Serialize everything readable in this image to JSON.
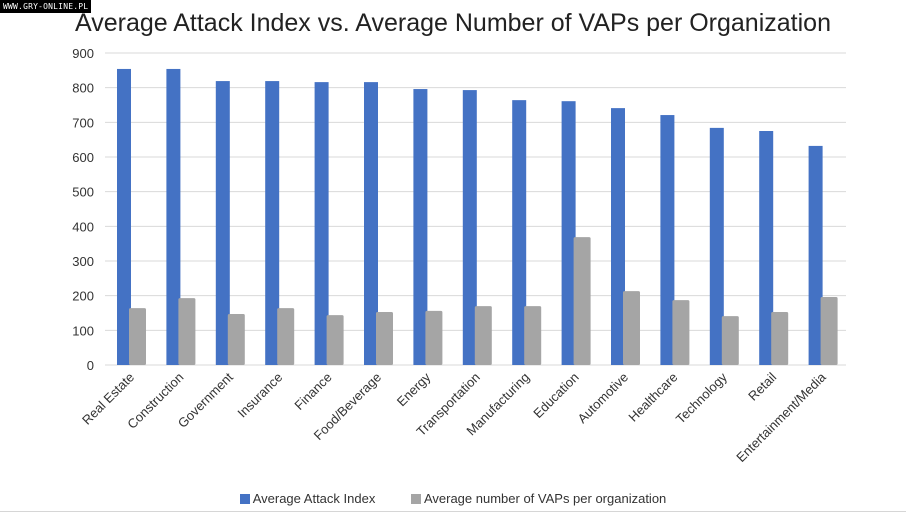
{
  "watermark": "WWW.GRY-ONLINE.PL",
  "chart_data": {
    "type": "bar",
    "title": "Average Attack Index vs. Average Number of VAPs per Organization",
    "xlabel": "",
    "ylabel": "",
    "ylim": [
      0,
      900
    ],
    "yticks": [
      0,
      100,
      200,
      300,
      400,
      500,
      600,
      700,
      800,
      900
    ],
    "grid": true,
    "legend_position": "bottom",
    "categories": [
      "Real Estate",
      "Construction",
      "Government",
      "Insurance",
      "Finance",
      "Food/Beverage",
      "Energy",
      "Transportation",
      "Manufacturing",
      "Education",
      "Automotive",
      "Healthcare",
      "Technology",
      "Retail",
      "Entertainment/Media"
    ],
    "series": [
      {
        "name": "Average Attack Index",
        "color": "#4472c4",
        "values": [
          854,
          854,
          819,
          819,
          816,
          816,
          796,
          793,
          764,
          761,
          741,
          721,
          684,
          675,
          632
        ]
      },
      {
        "name": "Average number of VAPs per organization",
        "color": "#a5a5a5",
        "values": [
          164,
          193,
          147,
          164,
          144,
          153,
          156,
          170,
          170,
          369,
          213,
          187,
          141,
          153,
          196
        ]
      }
    ]
  },
  "colors": {
    "gridline": "#d9d9d9",
    "text": "#333333"
  }
}
